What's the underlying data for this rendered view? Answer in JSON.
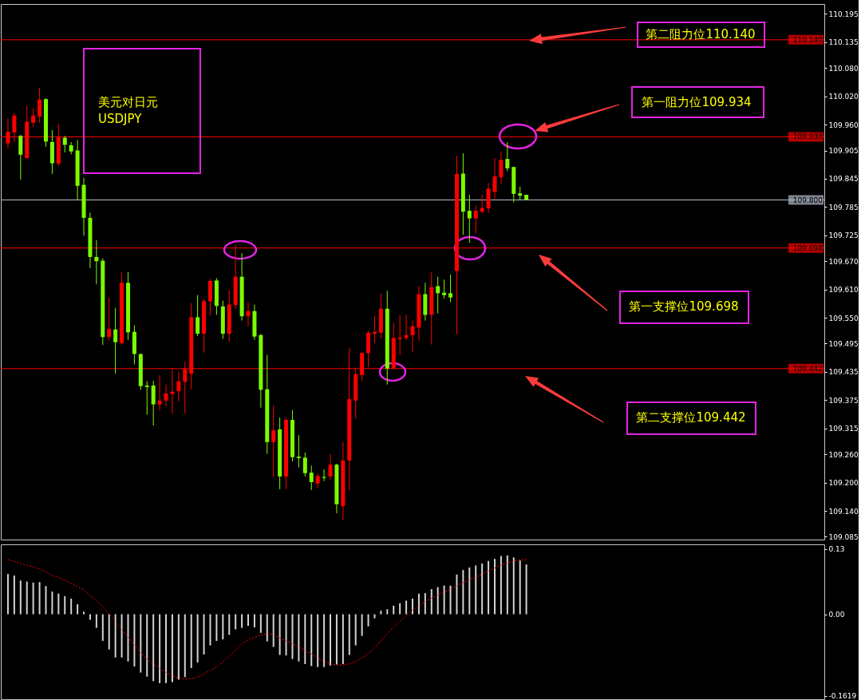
{
  "chart_data": [
    {
      "type": "candlestick",
      "categories": [
        null,
        null,
        null,
        null,
        null,
        null,
        null,
        null,
        null,
        null,
        null,
        null,
        null,
        null,
        null,
        null,
        null,
        null,
        null,
        null,
        null,
        null,
        null,
        null,
        null,
        null,
        null,
        null,
        null,
        null,
        null,
        null,
        null,
        null,
        null,
        null,
        null,
        null,
        null,
        null,
        null,
        null,
        null,
        null,
        null,
        null,
        null,
        null,
        null,
        null,
        null,
        null,
        null,
        null,
        null,
        null,
        null,
        null,
        null,
        null,
        null,
        null,
        null,
        null,
        null,
        null,
        null,
        null,
        null,
        null,
        null,
        null,
        null,
        null,
        null,
        null,
        null,
        null,
        null,
        null,
        null,
        null,
        null,
        null,
        null,
        null,
        null,
        null,
        null,
        null,
        null,
        null,
        null,
        null,
        null,
        null,
        null,
        null,
        null,
        null,
        null,
        null,
        null,
        null,
        null,
        null,
        null,
        null,
        null,
        null,
        null,
        null,
        null,
        null,
        null,
        null,
        null,
        null,
        null,
        null,
        null,
        null,
        null,
        null,
        null,
        null,
        null,
        null,
        null
      ],
      "ohlc": [
        [
          109.92,
          109.973,
          109.909,
          109.945
        ],
        [
          109.943,
          109.985,
          109.923,
          109.979
        ],
        [
          109.936,
          109.938,
          109.843,
          109.896
        ],
        [
          109.889,
          110.0,
          109.887,
          109.966
        ],
        [
          109.964,
          109.994,
          109.955,
          109.979
        ],
        [
          109.977,
          110.038,
          109.964,
          110.013
        ],
        [
          110.014,
          110.016,
          109.913,
          109.924
        ],
        [
          109.923,
          109.948,
          109.855,
          109.878
        ],
        [
          109.877,
          109.962,
          109.872,
          109.933
        ],
        [
          109.932,
          109.936,
          109.901,
          109.917
        ],
        [
          109.916,
          109.923,
          109.897,
          109.903
        ],
        [
          109.905,
          109.927,
          109.8,
          109.83
        ],
        [
          109.832,
          109.847,
          109.724,
          109.762
        ],
        [
          109.762,
          109.773,
          109.655,
          109.679
        ],
        [
          109.679,
          109.715,
          109.621,
          109.67
        ],
        [
          109.671,
          109.676,
          109.492,
          109.509
        ],
        [
          109.509,
          109.593,
          109.502,
          109.526
        ],
        [
          109.525,
          109.571,
          109.431,
          109.498
        ],
        [
          109.496,
          109.646,
          109.493,
          109.624
        ],
        [
          109.624,
          109.647,
          109.503,
          109.519
        ],
        [
          109.52,
          109.534,
          109.451,
          109.473
        ],
        [
          109.473,
          109.473,
          109.397,
          109.405
        ],
        [
          109.406,
          109.415,
          109.344,
          109.403
        ],
        [
          109.406,
          109.416,
          109.321,
          109.366
        ],
        [
          109.366,
          109.428,
          109.354,
          109.374
        ],
        [
          109.374,
          109.408,
          109.362,
          109.389
        ],
        [
          109.388,
          109.442,
          109.346,
          109.393
        ],
        [
          109.394,
          109.435,
          109.373,
          109.415
        ],
        [
          109.414,
          109.457,
          109.346,
          109.441
        ],
        [
          109.431,
          109.581,
          109.398,
          109.551
        ],
        [
          109.551,
          109.598,
          109.511,
          109.516
        ],
        [
          109.516,
          109.589,
          109.476,
          109.585
        ],
        [
          109.585,
          109.632,
          109.555,
          109.628
        ],
        [
          109.629,
          109.634,
          109.556,
          109.575
        ],
        [
          109.574,
          109.586,
          109.505,
          109.516
        ],
        [
          109.516,
          109.608,
          109.499,
          109.578
        ],
        [
          109.577,
          109.705,
          109.569,
          109.637
        ],
        [
          109.637,
          109.687,
          109.544,
          109.553
        ],
        [
          109.553,
          109.583,
          109.531,
          109.564
        ],
        [
          109.564,
          109.578,
          109.503,
          109.51
        ],
        [
          109.513,
          109.516,
          109.359,
          109.397
        ],
        [
          109.398,
          109.471,
          109.261,
          109.286
        ],
        [
          109.286,
          109.364,
          109.212,
          109.311
        ],
        [
          109.313,
          109.338,
          109.186,
          109.213
        ],
        [
          109.213,
          109.338,
          109.186,
          109.333
        ],
        [
          109.333,
          109.354,
          109.245,
          109.254
        ],
        [
          109.255,
          109.301,
          109.232,
          109.252
        ],
        [
          109.253,
          109.264,
          109.213,
          109.22
        ],
        [
          109.221,
          109.236,
          109.184,
          109.201
        ],
        [
          109.198,
          109.219,
          109.188,
          109.214
        ],
        [
          109.212,
          109.228,
          109.203,
          109.21
        ],
        [
          109.213,
          109.26,
          109.206,
          109.238
        ],
        [
          109.238,
          109.24,
          109.135,
          109.154
        ],
        [
          109.15,
          109.286,
          109.12,
          109.247
        ],
        [
          109.247,
          109.486,
          109.183,
          109.377
        ],
        [
          109.374,
          109.444,
          109.335,
          109.43
        ],
        [
          109.428,
          109.478,
          109.416,
          109.475
        ],
        [
          109.475,
          109.522,
          109.445,
          109.518
        ],
        [
          109.516,
          109.554,
          109.496,
          109.52
        ],
        [
          109.518,
          109.602,
          109.505,
          109.569
        ],
        [
          109.569,
          109.607,
          109.408,
          109.442
        ],
        [
          109.442,
          109.539,
          109.442,
          109.507
        ],
        [
          109.505,
          109.556,
          109.471,
          109.508
        ],
        [
          109.507,
          109.557,
          109.503,
          109.513
        ],
        [
          109.513,
          109.544,
          109.478,
          109.532
        ],
        [
          109.529,
          109.617,
          109.501,
          109.6
        ],
        [
          109.6,
          109.624,
          109.544,
          109.556
        ],
        [
          109.556,
          109.646,
          109.493,
          109.615
        ],
        [
          109.617,
          109.637,
          109.559,
          109.602
        ],
        [
          109.603,
          109.631,
          109.591,
          109.598
        ],
        [
          109.602,
          109.641,
          109.583,
          109.593
        ],
        [
          109.649,
          109.894,
          109.515,
          109.855
        ],
        [
          109.856,
          109.899,
          109.726,
          109.775
        ],
        [
          109.777,
          109.811,
          109.709,
          109.761
        ],
        [
          109.761,
          109.788,
          109.729,
          109.777
        ],
        [
          109.775,
          109.812,
          109.771,
          109.783
        ],
        [
          109.782,
          109.836,
          109.773,
          109.824
        ],
        [
          109.817,
          109.889,
          109.802,
          109.85
        ],
        [
          109.848,
          109.902,
          109.834,
          109.885
        ],
        [
          109.887,
          109.923,
          109.861,
          109.867
        ],
        [
          109.87,
          109.87,
          109.795,
          109.813
        ],
        [
          109.814,
          109.828,
          109.8,
          109.809
        ],
        [
          109.811,
          109.811,
          109.8,
          109.8
        ],
        null,
        null,
        null,
        null,
        null,
        null,
        null,
        null,
        null,
        null,
        null,
        null,
        null,
        null,
        null,
        null,
        null,
        null,
        null,
        null,
        null,
        null,
        null,
        null,
        null,
        null,
        null,
        null,
        null,
        null,
        null,
        null,
        null,
        null,
        null,
        null,
        null,
        null,
        null,
        null,
        null,
        null,
        null,
        null,
        null,
        null
      ],
      "colors": [
        "#ff0000",
        "#ff0000",
        "#7cfc00",
        "#ff0000",
        "#ff0000",
        "#ff0000",
        "#7cfc00",
        "#7cfc00",
        "#ff0000",
        "#7cfc00",
        "#7cfc00",
        "#7cfc00",
        "#7cfc00",
        "#7cfc00",
        "#7cfc00",
        "#7cfc00",
        "#ff0000",
        "#7cfc00",
        "#ff0000",
        "#7cfc00",
        "#7cfc00",
        "#7cfc00",
        "#7cfc00",
        "#7cfc00",
        "#ff0000",
        "#ff0000",
        "#ff0000",
        "#ff0000",
        "#ff0000",
        "#ff0000",
        "#7cfc00",
        "#ff0000",
        "#ff0000",
        "#7cfc00",
        "#7cfc00",
        "#ff0000",
        "#ff0000",
        "#7cfc00",
        "#ff0000",
        "#7cfc00",
        "#7cfc00",
        "#7cfc00",
        "#ff0000",
        "#7cfc00",
        "#ff0000",
        "#7cfc00",
        "#7cfc00",
        "#7cfc00",
        "#7cfc00",
        "#ff0000",
        "#7cfc00",
        "#ff0000",
        "#7cfc00",
        "#ff0000",
        "#ff0000",
        "#ff0000",
        "#ff0000",
        "#ff0000",
        "#ff0000",
        "#ff0000",
        "#7cfc00",
        "#ff0000",
        "#ff0000",
        "#ff0000",
        "#ff0000",
        "#ff0000",
        "#7cfc00",
        "#ff0000",
        "#7cfc00",
        "#7cfc00",
        "#7cfc00",
        "#ff0000",
        "#7cfc00",
        "#7cfc00",
        "#ff0000",
        "#ff0000",
        "#ff0000",
        "#ff0000",
        "#ff0000",
        "#7cfc00",
        "#7cfc00",
        "#7cfc00",
        "#7cfc00",
        null,
        null,
        null,
        null,
        null,
        null,
        null,
        null,
        null,
        null,
        null,
        null,
        null,
        null,
        null,
        null,
        null,
        null,
        null,
        null,
        null,
        null,
        null,
        null,
        null,
        null,
        null,
        null,
        null,
        null,
        null,
        null,
        null,
        null,
        null,
        null,
        null,
        null,
        null,
        null,
        null,
        null,
        null,
        null,
        null,
        null
      ],
      "ylim": [
        109.079,
        110.216
      ],
      "yticks": [
        110.195,
        110.135,
        {
          "value": 110.08,
          "label": "110.080"
        },
        {
          "value": 110.02,
          "label": "110.020"
        },
        {
          "value": 109.96,
          "label": "109.960"
        },
        109.905,
        109.845,
        109.785,
        109.725,
        {
          "value": 109.67,
          "label": "109.670"
        },
        {
          "value": 109.61,
          "label": "109.610"
        },
        {
          "value": 109.55,
          "label": "109.550"
        },
        109.495,
        109.435,
        109.375,
        109.315,
        {
          "value": 109.26,
          "label": "109.260"
        },
        {
          "value": 109.2,
          "label": "109.200"
        },
        {
          "value": 109.14,
          "label": "109.140"
        },
        109.085
      ],
      "tick_labels": "y",
      "ref_lines": [
        {
          "axis": "y",
          "value": 110.14,
          "label": "110.140",
          "color": "#ff0000"
        },
        {
          "axis": "y",
          "value": 109.934,
          "label": "109.934",
          "color": "#ff0000"
        },
        {
          "axis": "y",
          "value": 109.8,
          "label": "109.800",
          "color": "#b4bccb"
        },
        {
          "axis": "y",
          "value": 109.698,
          "label": "109.698",
          "color": "#ff0000"
        },
        {
          "axis": "y",
          "value": 109.442,
          "label": "109.442",
          "color": "#ff0000"
        }
      ],
      "annotations": [
        "美元对日元",
        "USDJPY",
        "第二阻力位110.140",
        "第一阻力位109.934",
        "第一支撑位109.698",
        "第二支撑位109.442"
      ]
    },
    {
      "type": "bar",
      "categories": [
        null,
        null,
        null,
        null,
        null,
        null,
        null,
        null,
        null,
        null,
        null,
        null,
        null,
        null,
        null,
        null,
        null,
        null,
        null,
        null,
        null,
        null,
        null,
        null,
        null,
        null,
        null,
        null,
        null,
        null,
        null,
        null,
        null,
        null,
        null,
        null,
        null,
        null,
        null,
        null,
        null,
        null,
        null,
        null,
        null,
        null,
        null,
        null,
        null,
        null,
        null,
        null,
        null,
        null,
        null,
        null,
        null,
        null,
        null,
        null,
        null,
        null,
        null,
        null,
        null,
        null,
        null,
        null,
        null,
        null,
        null,
        null,
        null,
        null,
        null,
        null,
        null,
        null,
        null,
        null,
        null,
        null,
        null,
        null,
        null,
        null,
        null,
        null,
        null,
        null,
        null,
        null,
        null,
        null,
        null,
        null,
        null,
        null,
        null,
        null,
        null,
        null,
        null,
        null,
        null,
        null,
        null,
        null,
        null,
        null,
        null,
        null,
        null,
        null,
        null,
        null,
        null,
        null,
        null,
        null,
        null,
        null,
        null,
        null,
        null,
        null,
        null,
        null,
        null
      ],
      "series": [
        {
          "type": "bar",
          "color": "#d2d2d2",
          "values": [
            0.08,
            0.077,
            0.067,
            0.065,
            0.063,
            0.064,
            0.056,
            0.045,
            0.041,
            0.036,
            0.031,
            0.02,
            0.005,
            -0.011,
            -0.027,
            -0.053,
            -0.07,
            -0.086,
            -0.086,
            -0.094,
            -0.104,
            -0.116,
            -0.124,
            -0.133,
            -0.137,
            -0.137,
            -0.135,
            -0.13,
            -0.125,
            -0.107,
            -0.096,
            -0.08,
            -0.062,
            -0.053,
            -0.05,
            -0.041,
            -0.03,
            -0.027,
            -0.023,
            -0.026,
            -0.037,
            -0.054,
            -0.065,
            -0.081,
            -0.082,
            -0.089,
            -0.094,
            -0.099,
            -0.103,
            -0.105,
            -0.105,
            -0.102,
            -0.1,
            -0.099,
            -0.081,
            -0.062,
            -0.043,
            -0.024,
            -0.008,
            0.007,
            0.01,
            0.017,
            0.022,
            0.027,
            0.031,
            0.041,
            0.042,
            0.05,
            0.054,
            0.057,
            0.057,
            0.079,
            0.088,
            0.093,
            0.097,
            0.101,
            0.106,
            0.11,
            0.116,
            0.117,
            0.113,
            0.107,
            0.099,
            null,
            null,
            null,
            null,
            null,
            null,
            null,
            null,
            null,
            null,
            null,
            null,
            null,
            null,
            null,
            null,
            null,
            null,
            null,
            null,
            null,
            null,
            null,
            null,
            null,
            null,
            null,
            null,
            null,
            null,
            null,
            null,
            null,
            null,
            null,
            null,
            null,
            null,
            null,
            null,
            null,
            null,
            null,
            null,
            null,
            null
          ]
        },
        {
          "type": "line",
          "color": "#ff0000",
          "line_style": "dotted",
          "values": [
            0.109,
            0.105,
            0.101,
            0.097,
            0.094,
            0.09,
            0.084,
            0.077,
            0.073,
            0.068,
            0.061,
            0.055,
            0.049,
            0.037,
            0.026,
            0.015,
            0.001,
            -0.014,
            -0.03,
            -0.046,
            -0.062,
            -0.077,
            -0.089,
            -0.099,
            -0.108,
            -0.116,
            -0.122,
            -0.127,
            -0.129,
            -0.128,
            -0.125,
            -0.118,
            -0.112,
            -0.105,
            -0.095,
            -0.084,
            -0.071,
            -0.059,
            -0.051,
            -0.046,
            -0.041,
            -0.039,
            -0.041,
            -0.047,
            -0.053,
            -0.059,
            -0.065,
            -0.072,
            -0.079,
            -0.087,
            -0.094,
            -0.099,
            -0.101,
            -0.101,
            -0.099,
            -0.094,
            -0.087,
            -0.078,
            -0.067,
            -0.053,
            -0.039,
            -0.026,
            -0.014,
            -0.003,
            0.008,
            0.017,
            0.025,
            0.032,
            0.039,
            0.044,
            0.049,
            0.056,
            0.063,
            0.069,
            0.074,
            0.08,
            0.086,
            0.092,
            0.098,
            0.102,
            0.106,
            0.108,
            0.109,
            null,
            null,
            null,
            null,
            null,
            null,
            null,
            null,
            null,
            null,
            null,
            null,
            null,
            null,
            null,
            null,
            null,
            null,
            null,
            null,
            null,
            null,
            null,
            null,
            null,
            null,
            null,
            null,
            null,
            null,
            null,
            null,
            null,
            null,
            null,
            null,
            null,
            null,
            null,
            null,
            null,
            null,
            null,
            null,
            null,
            null
          ]
        }
      ],
      "ylim": [
        -0.169,
        0.139
      ],
      "yticks": [
        0.13,
        {
          "value": 0,
          "label": "0.00"
        },
        -0.1619
      ],
      "tick_labels": "y"
    }
  ]
}
